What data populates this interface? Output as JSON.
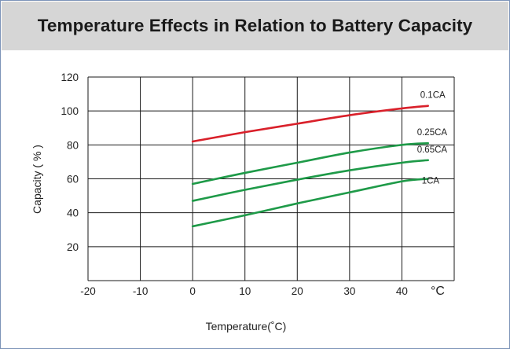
{
  "chart_data": {
    "type": "line",
    "title": "Temperature Effects in Relation to Battery Capacity",
    "xlabel": "Temperature(˚C)",
    "ylabel": "Capacity ( % )",
    "x_unit_label": "°C",
    "xlim": [
      -20,
      50
    ],
    "ylim": [
      0,
      120
    ],
    "x_ticks": [
      -20,
      -10,
      0,
      10,
      20,
      30,
      40
    ],
    "y_ticks": [
      20,
      40,
      60,
      80,
      100,
      120
    ],
    "grid": true,
    "legend": "none",
    "series": [
      {
        "name": "0.1CA",
        "color": "#d9202a",
        "points": [
          [
            0,
            82
          ],
          [
            10,
            87.5
          ],
          [
            20,
            92.5
          ],
          [
            30,
            97.5
          ],
          [
            40,
            101.5
          ],
          [
            45,
            103
          ]
        ]
      },
      {
        "name": "0.25CA",
        "color": "#1e9a48",
        "points": [
          [
            0,
            57
          ],
          [
            10,
            63.5
          ],
          [
            20,
            69.5
          ],
          [
            30,
            75.5
          ],
          [
            40,
            80
          ],
          [
            45,
            81
          ]
        ]
      },
      {
        "name": "0.65CA",
        "color": "#1e9a48",
        "points": [
          [
            0,
            47
          ],
          [
            10,
            53.5
          ],
          [
            20,
            59.5
          ],
          [
            30,
            65
          ],
          [
            40,
            69.5
          ],
          [
            45,
            71
          ]
        ]
      },
      {
        "name": "1CA",
        "color": "#1e9a48",
        "points": [
          [
            0,
            32
          ],
          [
            10,
            38.5
          ],
          [
            20,
            45.5
          ],
          [
            30,
            52
          ],
          [
            40,
            58.5
          ],
          [
            45,
            60
          ]
        ]
      }
    ]
  }
}
